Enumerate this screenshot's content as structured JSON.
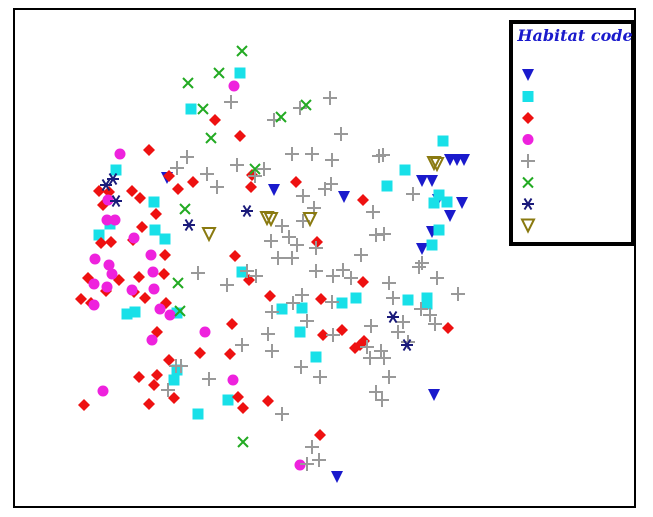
{
  "chart_data": {
    "type": "scatter",
    "title": "",
    "xlabel": "",
    "ylabel": "",
    "grid": false,
    "legend_placement": "top-right",
    "legend": {
      "title": "Habitat code"
    },
    "series": [
      {
        "marker": "triangle-down",
        "color": "#1a1acc",
        "points": [
          [
            165,
            176
          ],
          [
            272,
            188
          ],
          [
            342,
            195
          ],
          [
            420,
            179
          ],
          [
            430,
            179
          ],
          [
            448,
            158
          ],
          [
            455,
            158
          ],
          [
            462,
            158
          ],
          [
            436,
            198
          ],
          [
            448,
            214
          ],
          [
            460,
            201
          ],
          [
            420,
            247
          ],
          [
            430,
            230
          ],
          [
            432,
            393
          ],
          [
            335,
            475
          ]
        ]
      },
      {
        "marker": "square",
        "color": "#18e0e8",
        "points": [
          [
            238,
            71
          ],
          [
            189,
            107
          ],
          [
            441,
            139
          ],
          [
            403,
            168
          ],
          [
            385,
            184
          ],
          [
            432,
            201
          ],
          [
            437,
            193
          ],
          [
            445,
            200
          ],
          [
            437,
            228
          ],
          [
            430,
            243
          ],
          [
            152,
            200
          ],
          [
            114,
            168
          ],
          [
            97,
            233
          ],
          [
            108,
            222
          ],
          [
            153,
            228
          ],
          [
            163,
            237
          ],
          [
            240,
            270
          ],
          [
            280,
            307
          ],
          [
            300,
            306
          ],
          [
            340,
            301
          ],
          [
            354,
            296
          ],
          [
            406,
            298
          ],
          [
            425,
            296
          ],
          [
            425,
            302
          ],
          [
            175,
            311
          ],
          [
            298,
            330
          ],
          [
            125,
            312
          ],
          [
            133,
            310
          ],
          [
            175,
            368
          ],
          [
            172,
            378
          ],
          [
            314,
            355
          ],
          [
            196,
            412
          ],
          [
            226,
            398
          ]
        ]
      },
      {
        "marker": "diamond",
        "color": "#ee1111",
        "points": [
          [
            213,
            118
          ],
          [
            238,
            134
          ],
          [
            147,
            148
          ],
          [
            138,
            196
          ],
          [
            167,
            174
          ],
          [
            191,
            180
          ],
          [
            176,
            187
          ],
          [
            250,
            173
          ],
          [
            249,
            185
          ],
          [
            294,
            180
          ],
          [
            361,
            198
          ],
          [
            97,
            189
          ],
          [
            107,
            190
          ],
          [
            101,
            203
          ],
          [
            130,
            189
          ],
          [
            154,
            212
          ],
          [
            140,
            225
          ],
          [
            131,
            238
          ],
          [
            99,
            241
          ],
          [
            109,
            240
          ],
          [
            86,
            276
          ],
          [
            79,
            297
          ],
          [
            89,
            301
          ],
          [
            104,
            289
          ],
          [
            117,
            278
          ],
          [
            137,
            275
          ],
          [
            163,
            253
          ],
          [
            132,
            290
          ],
          [
            162,
            272
          ],
          [
            143,
            296
          ],
          [
            164,
            301
          ],
          [
            155,
            330
          ],
          [
            167,
            358
          ],
          [
            152,
            383
          ],
          [
            137,
            375
          ],
          [
            155,
            373
          ],
          [
            172,
            396
          ],
          [
            82,
            403
          ],
          [
            147,
            402
          ],
          [
            198,
            351
          ],
          [
            228,
            352
          ],
          [
            230,
            322
          ],
          [
            233,
            254
          ],
          [
            247,
            278
          ],
          [
            268,
            294
          ],
          [
            319,
            297
          ],
          [
            361,
            280
          ],
          [
            315,
            240
          ],
          [
            321,
            333
          ],
          [
            340,
            328
          ],
          [
            353,
            346
          ],
          [
            358,
            343
          ],
          [
            362,
            339
          ],
          [
            446,
            326
          ],
          [
            236,
            395
          ],
          [
            241,
            406
          ],
          [
            266,
            399
          ],
          [
            318,
            433
          ]
        ]
      },
      {
        "marker": "circle",
        "color": "#ee22dd",
        "points": [
          [
            118,
            152
          ],
          [
            232,
            84
          ],
          [
            106,
            198
          ],
          [
            105,
            218
          ],
          [
            113,
            218
          ],
          [
            132,
            236
          ],
          [
            93,
            257
          ],
          [
            107,
            263
          ],
          [
            110,
            272
          ],
          [
            92,
            282
          ],
          [
            105,
            285
          ],
          [
            92,
            303
          ],
          [
            130,
            288
          ],
          [
            151,
            270
          ],
          [
            149,
            253
          ],
          [
            152,
            287
          ],
          [
            158,
            307
          ],
          [
            168,
            313
          ],
          [
            203,
            330
          ],
          [
            150,
            338
          ],
          [
            231,
            378
          ],
          [
            101,
            389
          ],
          [
            298,
            463
          ]
        ]
      },
      {
        "marker": "plus",
        "color": "#999999",
        "points": [
          [
            229,
            100
          ],
          [
            272,
            118
          ],
          [
            298,
            106
          ],
          [
            328,
            96
          ],
          [
            339,
            132
          ],
          [
            185,
            155
          ],
          [
            175,
            166
          ],
          [
            205,
            172
          ],
          [
            215,
            185
          ],
          [
            235,
            163
          ],
          [
            262,
            167
          ],
          [
            253,
            174
          ],
          [
            290,
            152
          ],
          [
            310,
            152
          ],
          [
            330,
            158
          ],
          [
            377,
            154
          ],
          [
            381,
            153
          ],
          [
            329,
            182
          ],
          [
            323,
            187
          ],
          [
            301,
            194
          ],
          [
            312,
            206
          ],
          [
            301,
            219
          ],
          [
            280,
            224
          ],
          [
            269,
            239
          ],
          [
            287,
            235
          ],
          [
            295,
            243
          ],
          [
            314,
            246
          ],
          [
            276,
            256
          ],
          [
            290,
            256
          ],
          [
            314,
            269
          ],
          [
            331,
            274
          ],
          [
            349,
            276
          ],
          [
            371,
            210
          ],
          [
            374,
            233
          ],
          [
            382,
            232
          ],
          [
            359,
            253
          ],
          [
            341,
            268
          ],
          [
            387,
            281
          ],
          [
            411,
            192
          ],
          [
            417,
            265
          ],
          [
            420,
            261
          ],
          [
            435,
            276
          ],
          [
            456,
            292
          ],
          [
            196,
            271
          ],
          [
            225,
            283
          ],
          [
            245,
            269
          ],
          [
            254,
            274
          ],
          [
            270,
            310
          ],
          [
            266,
            332
          ],
          [
            331,
            333
          ],
          [
            291,
            301
          ],
          [
            300,
            293
          ],
          [
            330,
            300
          ],
          [
            305,
            319
          ],
          [
            369,
            324
          ],
          [
            391,
            296
          ],
          [
            396,
            330
          ],
          [
            419,
            307
          ],
          [
            428,
            313
          ],
          [
            433,
            322
          ],
          [
            406,
            340
          ],
          [
            401,
            320
          ],
          [
            368,
            356
          ],
          [
            365,
            345
          ],
          [
            379,
            349
          ],
          [
            318,
            375
          ],
          [
            387,
            375
          ],
          [
            374,
            390
          ],
          [
            380,
            398
          ],
          [
            382,
            356
          ],
          [
            299,
            365
          ],
          [
            240,
            343
          ],
          [
            270,
            349
          ],
          [
            174,
            364
          ],
          [
            179,
            364
          ],
          [
            166,
            388
          ],
          [
            207,
            377
          ],
          [
            280,
            412
          ],
          [
            310,
            445
          ],
          [
            305,
            462
          ],
          [
            317,
            458
          ]
        ]
      },
      {
        "marker": "x",
        "color": "#22aa22",
        "points": [
          [
            240,
            49
          ],
          [
            217,
            71
          ],
          [
            186,
            81
          ],
          [
            201,
            107
          ],
          [
            304,
            103
          ],
          [
            279,
            115
          ],
          [
            209,
            136
          ],
          [
            253,
            167
          ],
          [
            183,
            207
          ],
          [
            176,
            281
          ],
          [
            178,
            309
          ],
          [
            241,
            440
          ]
        ]
      },
      {
        "marker": "asterisk",
        "color": "#1a1a7a",
        "points": [
          [
            111,
            177
          ],
          [
            104,
            183
          ],
          [
            114,
            199
          ],
          [
            245,
            209
          ],
          [
            187,
            223
          ],
          [
            391,
            315
          ],
          [
            405,
            343
          ]
        ]
      },
      {
        "marker": "triangle-down-open",
        "color": "#8a7a10",
        "points": [
          [
            435,
            162
          ],
          [
            432,
            161
          ],
          [
            265,
            216
          ],
          [
            269,
            217
          ],
          [
            308,
            217
          ],
          [
            207,
            232
          ]
        ]
      }
    ]
  }
}
